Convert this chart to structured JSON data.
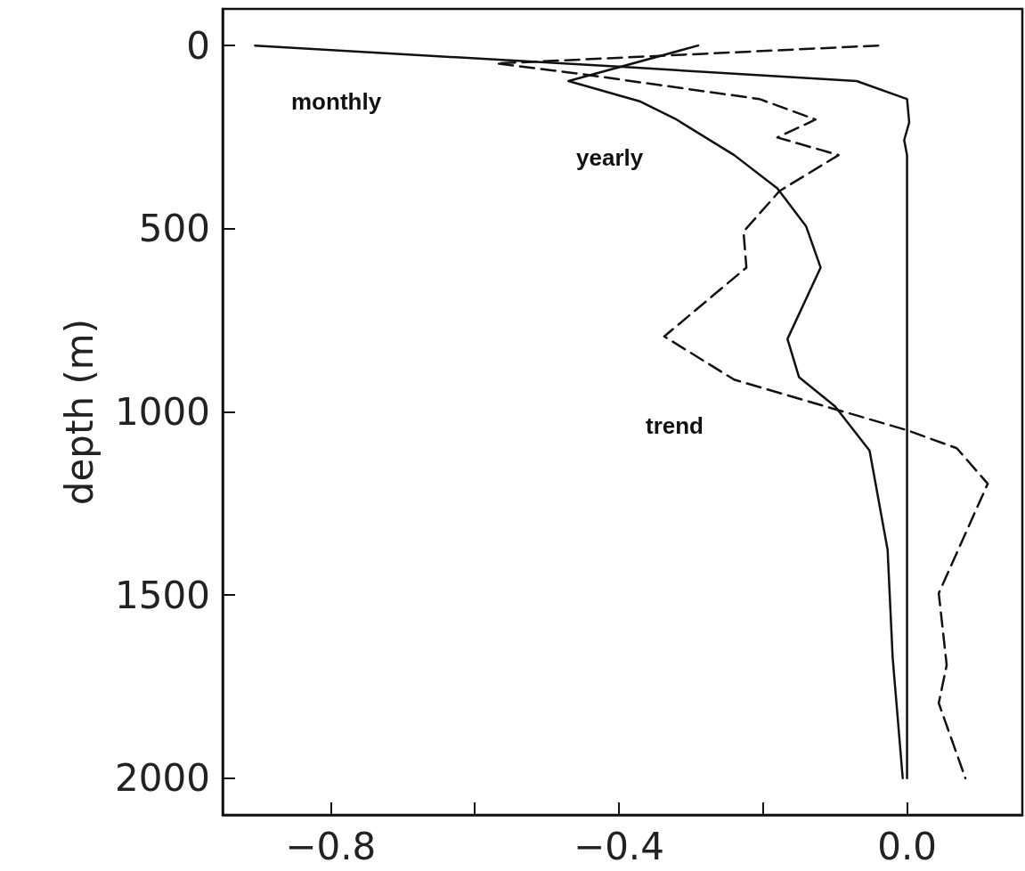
{
  "chart_data": {
    "type": "line",
    "ylabel": "depth (m)",
    "xlim": [
      -0.95,
      0.16
    ],
    "ylim": [
      2100,
      -100
    ],
    "xticks": [
      {
        "value": -0.8,
        "label": "−0.8"
      },
      {
        "value": -0.6,
        "label": null
      },
      {
        "value": -0.4,
        "label": "−0.4"
      },
      {
        "value": -0.2,
        "label": null
      },
      {
        "value": 0.0,
        "label": "0.0"
      }
    ],
    "yticks": [
      0,
      500,
      1000,
      1500,
      2000
    ],
    "grid": false,
    "legend": false,
    "marker": "none",
    "series": [
      {
        "name": "monthly",
        "color": "#111111",
        "line_style": "solid",
        "x": [
          -0.905,
          -0.38,
          -0.07,
          0.0,
          0.003,
          -0.004,
          0.0,
          0.0
        ],
        "values": [
          0,
          60,
          97,
          146,
          210,
          258,
          300,
          2000
        ]
      },
      {
        "name": "yearly",
        "color": "#111111",
        "line_style": "solid",
        "x": [
          -0.29,
          -0.47,
          -0.37,
          -0.32,
          -0.24,
          -0.18,
          -0.14,
          -0.12,
          -0.166,
          -0.15,
          -0.1,
          -0.052,
          -0.027,
          -0.02,
          -0.006
        ],
        "values": [
          0,
          97,
          153,
          202,
          299,
          390,
          494,
          606,
          801,
          905,
          985,
          1106,
          1376,
          1670,
          2000
        ]
      },
      {
        "name": "trend",
        "color": "#111111",
        "line_style": "dashed",
        "x": [
          -0.04,
          -0.57,
          -0.455,
          -0.205,
          -0.127,
          -0.18,
          -0.095,
          -0.177,
          -0.227,
          -0.223,
          -0.337,
          -0.24,
          0.0,
          0.069,
          0.112,
          0.044,
          0.055,
          0.044,
          0.081
        ],
        "values": [
          0,
          49,
          77,
          146,
          202,
          251,
          299,
          397,
          508,
          606,
          794,
          912,
          1050,
          1099,
          1196,
          1495,
          1691,
          1795,
          2000
        ]
      }
    ]
  }
}
